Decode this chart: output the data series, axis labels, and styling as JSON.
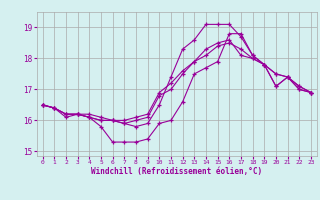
{
  "xlabel": "Windchill (Refroidissement éolien,°C)",
  "x": [
    0,
    1,
    2,
    3,
    4,
    5,
    6,
    7,
    8,
    9,
    10,
    11,
    12,
    13,
    14,
    15,
    16,
    17,
    18,
    19,
    20,
    21,
    22,
    23
  ],
  "y_min": [
    16.5,
    16.4,
    16.1,
    16.2,
    16.1,
    15.8,
    15.3,
    15.3,
    15.3,
    15.4,
    15.9,
    16.0,
    16.6,
    17.5,
    17.7,
    17.9,
    18.8,
    18.8,
    18.1,
    17.8,
    17.1,
    17.4,
    17.0,
    16.9
  ],
  "y_max": [
    16.5,
    16.4,
    16.2,
    16.2,
    16.1,
    16.0,
    16.0,
    15.9,
    15.8,
    15.9,
    16.5,
    17.4,
    18.3,
    18.6,
    19.1,
    19.1,
    19.1,
    18.7,
    18.1,
    17.8,
    17.1,
    17.4,
    17.0,
    16.9
  ],
  "y_mean1": [
    16.5,
    16.4,
    16.2,
    16.2,
    16.1,
    16.0,
    16.0,
    15.9,
    16.0,
    16.1,
    16.8,
    17.0,
    17.5,
    17.9,
    18.3,
    18.5,
    18.6,
    18.1,
    18.0,
    17.8,
    17.5,
    17.4,
    17.1,
    16.9
  ],
  "y_mean2": [
    16.5,
    16.4,
    16.2,
    16.2,
    16.2,
    16.1,
    16.0,
    16.0,
    16.1,
    16.2,
    16.9,
    17.2,
    17.6,
    17.9,
    18.1,
    18.4,
    18.5,
    18.3,
    18.0,
    17.8,
    17.5,
    17.4,
    17.1,
    16.9
  ],
  "line_color": "#990099",
  "bg_color": "#d5f0f0",
  "grid_color": "#aaaaaa",
  "ylim": [
    14.85,
    19.5
  ],
  "yticks": [
    15,
    16,
    17,
    18,
    19
  ]
}
